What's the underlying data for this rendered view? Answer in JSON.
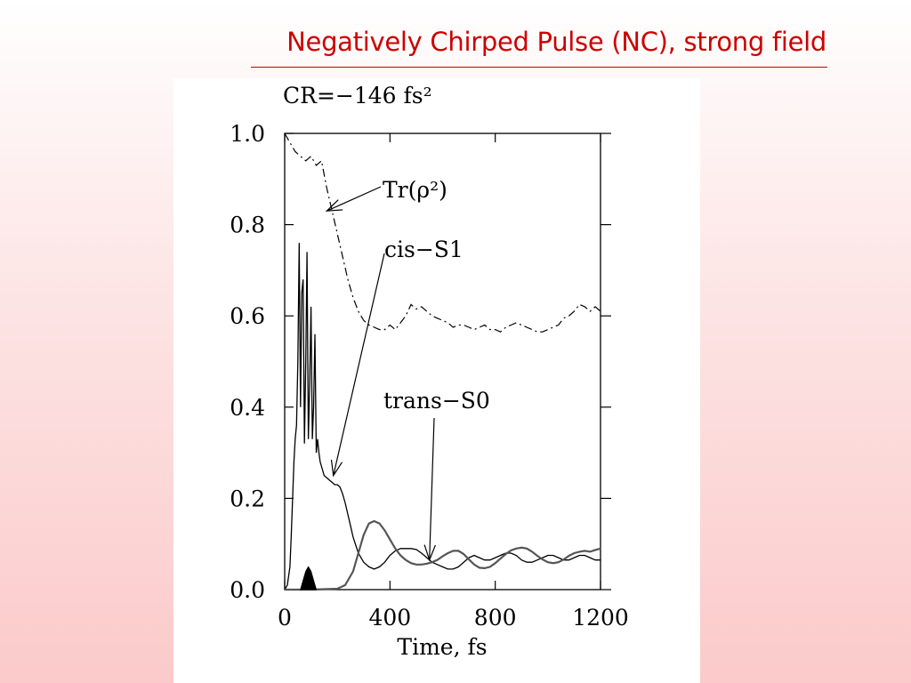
{
  "slide": {
    "title": "Negatively Chirped Pulse (NC), strong field"
  },
  "chart_data": {
    "type": "line",
    "title": "CR=−146  fs²",
    "xlabel": "Time,  fs",
    "ylabel": "",
    "xlim": [
      0,
      1200
    ],
    "ylim": [
      0,
      1.0
    ],
    "x_ticks": [
      "0",
      "400",
      "800",
      "1200"
    ],
    "y_ticks": [
      "0.0",
      "0.2",
      "0.4",
      "0.6",
      "0.8",
      "1.0"
    ],
    "grid": false,
    "legend": "none",
    "annotations": {
      "purity": "Tr(ρ²)",
      "cis": "cis−S1",
      "trans": "trans−S0"
    },
    "series": [
      {
        "key": "purity",
        "style": "dash-dot",
        "color": "#000000",
        "x": [
          0,
          20,
          40,
          60,
          80,
          100,
          120,
          140,
          160,
          180,
          200,
          220,
          240,
          260,
          280,
          300,
          320,
          340,
          360,
          380,
          400,
          420,
          440,
          460,
          480,
          500,
          520,
          540,
          560,
          580,
          600,
          620,
          640,
          660,
          680,
          700,
          720,
          740,
          760,
          780,
          800,
          820,
          840,
          860,
          880,
          900,
          920,
          940,
          960,
          980,
          1000,
          1020,
          1040,
          1060,
          1080,
          1100,
          1120,
          1140,
          1160,
          1180,
          1200
        ],
        "y": [
          1.0,
          0.98,
          0.96,
          0.95,
          0.94,
          0.95,
          0.93,
          0.94,
          0.88,
          0.83,
          0.78,
          0.73,
          0.68,
          0.64,
          0.61,
          0.59,
          0.58,
          0.575,
          0.57,
          0.57,
          0.58,
          0.57,
          0.585,
          0.6,
          0.625,
          0.615,
          0.62,
          0.61,
          0.6,
          0.595,
          0.59,
          0.585,
          0.575,
          0.58,
          0.58,
          0.575,
          0.57,
          0.575,
          0.58,
          0.57,
          0.57,
          0.565,
          0.575,
          0.58,
          0.585,
          0.58,
          0.575,
          0.57,
          0.565,
          0.565,
          0.57,
          0.575,
          0.58,
          0.595,
          0.6,
          0.61,
          0.625,
          0.62,
          0.61,
          0.62,
          0.61
        ]
      },
      {
        "key": "cis",
        "style": "solid",
        "color": "#000000",
        "x": [
          0,
          10,
          20,
          25,
          30,
          35,
          40,
          45,
          50,
          55,
          60,
          65,
          70,
          75,
          80,
          85,
          90,
          95,
          100,
          105,
          110,
          115,
          120,
          125,
          130,
          135,
          140,
          150,
          160,
          170,
          180,
          190,
          200,
          210,
          220,
          230,
          240,
          250,
          260,
          280,
          300,
          320,
          340,
          360,
          380,
          400,
          420,
          440,
          460,
          480,
          500,
          520,
          540,
          560,
          580,
          600,
          620,
          640,
          660,
          680,
          700,
          720,
          740,
          760,
          780,
          800,
          820,
          840,
          860,
          880,
          900,
          920,
          940,
          960,
          980,
          1000,
          1020,
          1040,
          1060,
          1080,
          1100,
          1120,
          1140,
          1160,
          1180,
          1200
        ],
        "y": [
          0.0,
          0.01,
          0.05,
          0.12,
          0.2,
          0.28,
          0.33,
          0.36,
          0.5,
          0.76,
          0.4,
          0.65,
          0.68,
          0.32,
          0.5,
          0.74,
          0.33,
          0.45,
          0.62,
          0.33,
          0.4,
          0.56,
          0.3,
          0.33,
          0.3,
          0.28,
          0.27,
          0.25,
          0.245,
          0.24,
          0.235,
          0.23,
          0.23,
          0.225,
          0.21,
          0.19,
          0.165,
          0.14,
          0.115,
          0.08,
          0.06,
          0.05,
          0.045,
          0.05,
          0.06,
          0.075,
          0.085,
          0.09,
          0.09,
          0.09,
          0.088,
          0.08,
          0.07,
          0.06,
          0.055,
          0.05,
          0.045,
          0.045,
          0.05,
          0.06,
          0.07,
          0.075,
          0.07,
          0.065,
          0.065,
          0.07,
          0.075,
          0.08,
          0.08,
          0.075,
          0.065,
          0.06,
          0.06,
          0.065,
          0.07,
          0.075,
          0.075,
          0.07,
          0.065,
          0.065,
          0.07,
          0.075,
          0.075,
          0.07,
          0.065,
          0.065
        ]
      },
      {
        "key": "trans",
        "style": "solid",
        "color": "#555555",
        "x": [
          0,
          100,
          200,
          230,
          260,
          280,
          300,
          320,
          340,
          360,
          380,
          400,
          420,
          440,
          460,
          480,
          500,
          520,
          540,
          560,
          580,
          600,
          620,
          640,
          660,
          680,
          700,
          720,
          740,
          760,
          780,
          800,
          820,
          840,
          860,
          880,
          900,
          920,
          940,
          960,
          980,
          1000,
          1020,
          1040,
          1060,
          1080,
          1100,
          1120,
          1140,
          1160,
          1180,
          1200
        ],
        "y": [
          0.0,
          0.0,
          0.002,
          0.01,
          0.04,
          0.08,
          0.12,
          0.145,
          0.15,
          0.145,
          0.13,
          0.11,
          0.09,
          0.075,
          0.065,
          0.058,
          0.055,
          0.055,
          0.057,
          0.06,
          0.065,
          0.073,
          0.08,
          0.085,
          0.085,
          0.078,
          0.066,
          0.055,
          0.048,
          0.047,
          0.05,
          0.058,
          0.068,
          0.078,
          0.086,
          0.09,
          0.092,
          0.09,
          0.083,
          0.074,
          0.066,
          0.06,
          0.058,
          0.06,
          0.066,
          0.074,
          0.08,
          0.083,
          0.085,
          0.083,
          0.087,
          0.09
        ]
      },
      {
        "key": "pulse",
        "style": "filled",
        "color": "#000000",
        "x": [
          60,
          70,
          80,
          90,
          100,
          110,
          120
        ],
        "y": [
          0.0,
          0.02,
          0.04,
          0.05,
          0.04,
          0.02,
          0.0
        ]
      }
    ]
  }
}
